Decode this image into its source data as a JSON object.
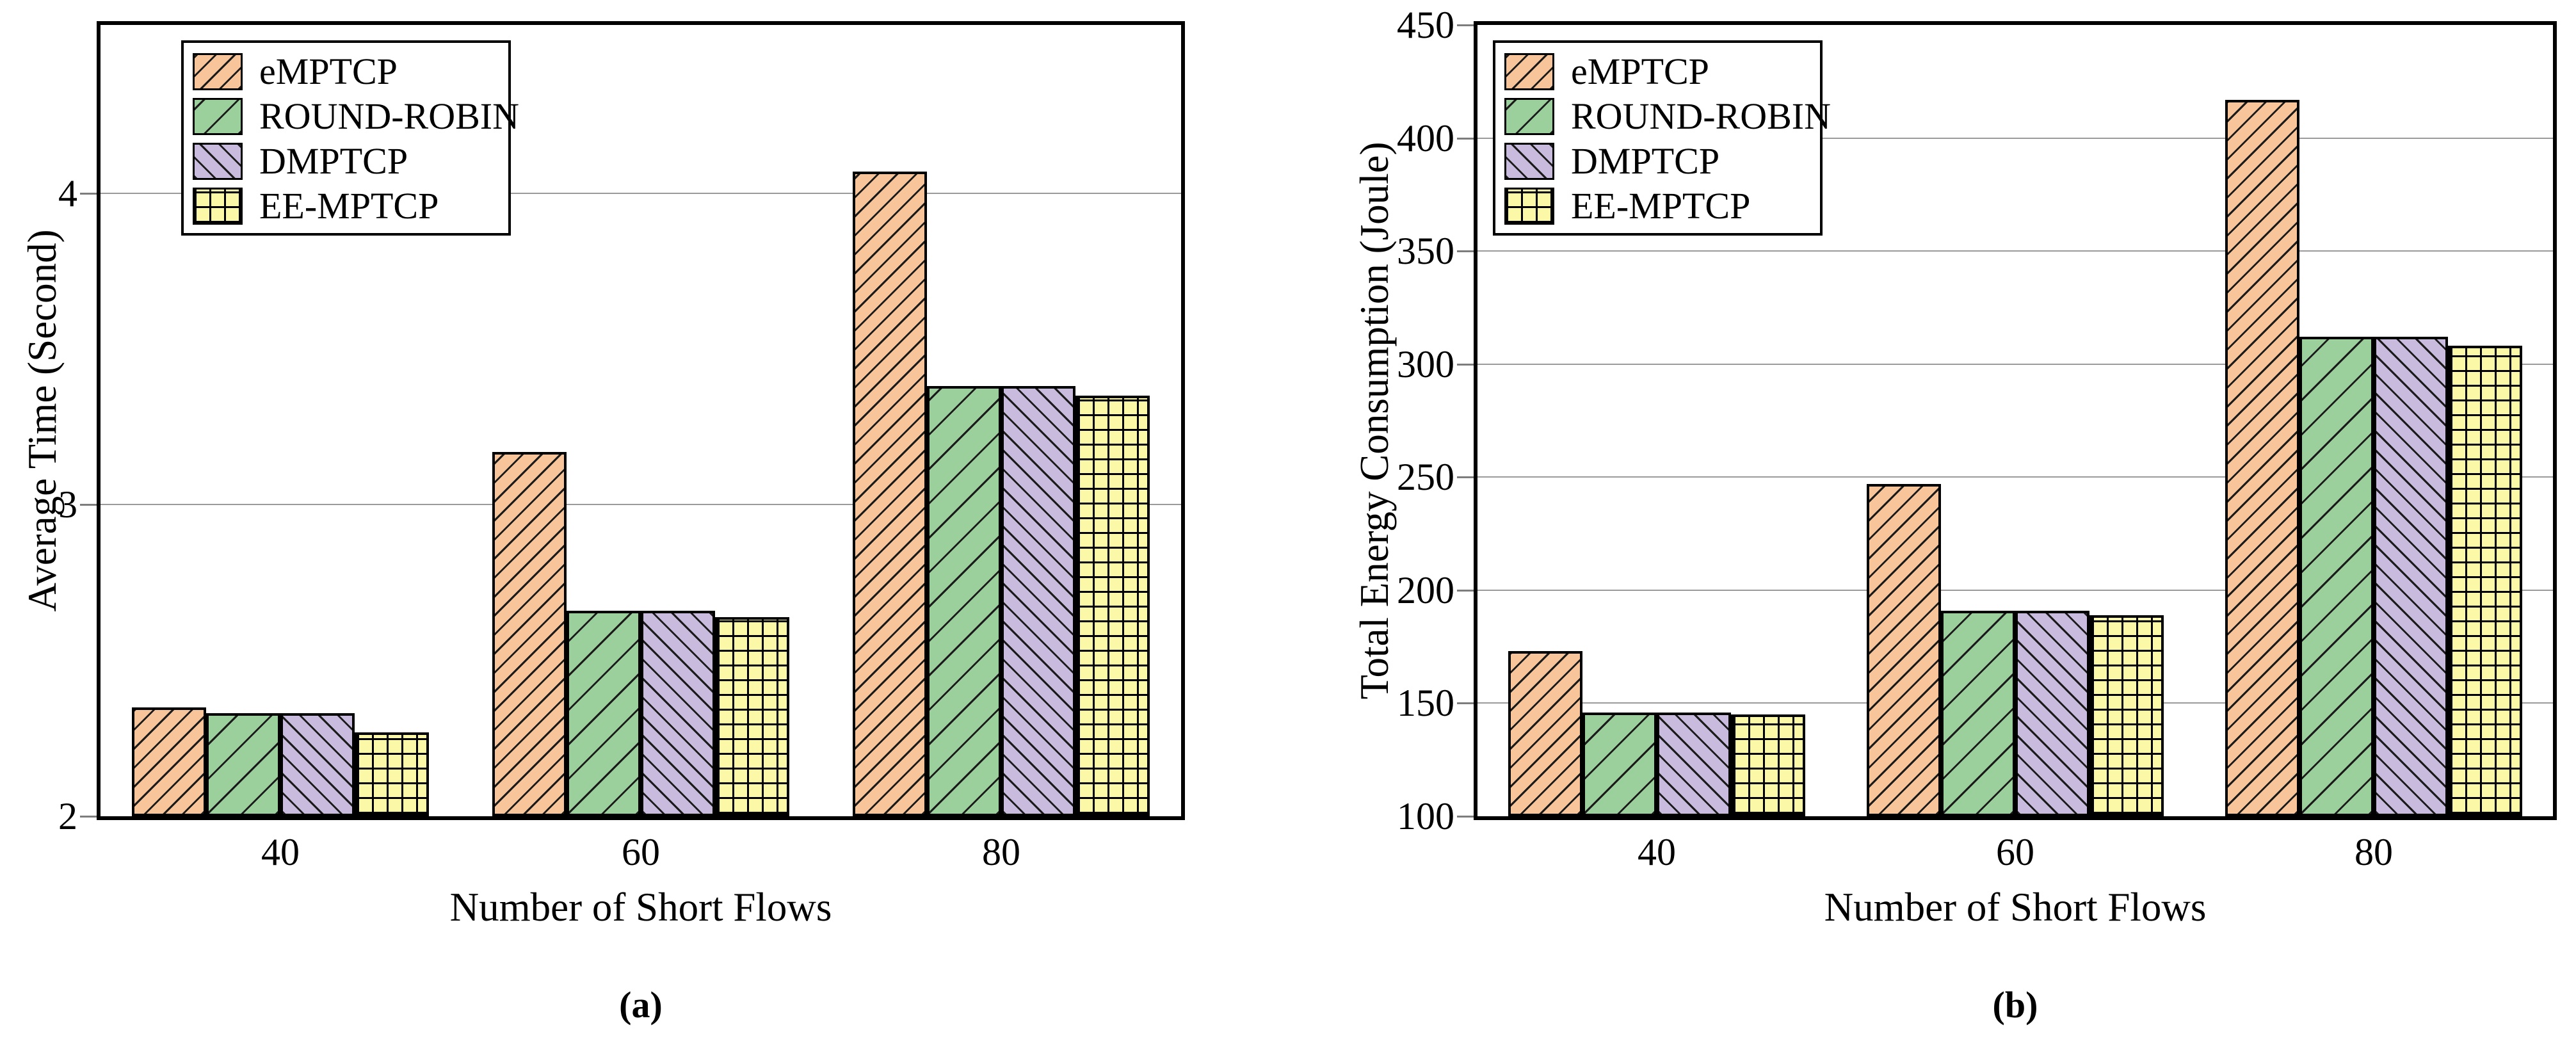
{
  "figure": {
    "background": "#ffffff",
    "frame_color": "#000000",
    "gridline_color": "#9a9a9a"
  },
  "chart_data": [
    {
      "type": "bar",
      "panel": "a",
      "caption": "(a)",
      "xlabel": "Number of Short Flows",
      "ylabel": "Average Time (Second)",
      "categories": [
        "40",
        "60",
        "80"
      ],
      "ylim": [
        2,
        4.54
      ],
      "yticks": [
        2,
        3,
        4
      ],
      "grid": "horizontal",
      "legend_position": "upper-left",
      "series": [
        {
          "name": "eMPTCP",
          "color": "#F8C59A",
          "hatch": "slash-dense",
          "values": [
            2.35,
            3.17,
            4.07
          ]
        },
        {
          "name": "ROUND-ROBIN",
          "color": "#9BCF9C",
          "hatch": "slash-wide",
          "values": [
            2.33,
            2.66,
            3.38
          ]
        },
        {
          "name": "DMPTCP",
          "color": "#C8BBDD",
          "hatch": "backslash",
          "values": [
            2.33,
            2.66,
            3.38
          ]
        },
        {
          "name": "EE-MPTCP",
          "color": "#FBF9A8",
          "hatch": "grid",
          "values": [
            2.27,
            2.64,
            3.35
          ]
        }
      ]
    },
    {
      "type": "bar",
      "panel": "b",
      "caption": "(b)",
      "xlabel": "Number of Short Flows",
      "ylabel": "Total Energy Consumption (Joule)",
      "categories": [
        "40",
        "60",
        "80"
      ],
      "ylim": [
        100,
        450
      ],
      "yticks": [
        100,
        150,
        200,
        250,
        300,
        350,
        400,
        450
      ],
      "grid": "horizontal",
      "legend_position": "upper-left",
      "series": [
        {
          "name": "eMPTCP",
          "color": "#F8C59A",
          "hatch": "slash-dense",
          "values": [
            173,
            247,
            417
          ]
        },
        {
          "name": "ROUND-ROBIN",
          "color": "#9BCF9C",
          "hatch": "slash-wide",
          "values": [
            146,
            191,
            312
          ]
        },
        {
          "name": "DMPTCP",
          "color": "#C8BBDD",
          "hatch": "backslash",
          "values": [
            146,
            191,
            312
          ]
        },
        {
          "name": "EE-MPTCP",
          "color": "#FBF9A8",
          "hatch": "grid",
          "values": [
            145,
            189,
            308
          ]
        }
      ]
    }
  ]
}
